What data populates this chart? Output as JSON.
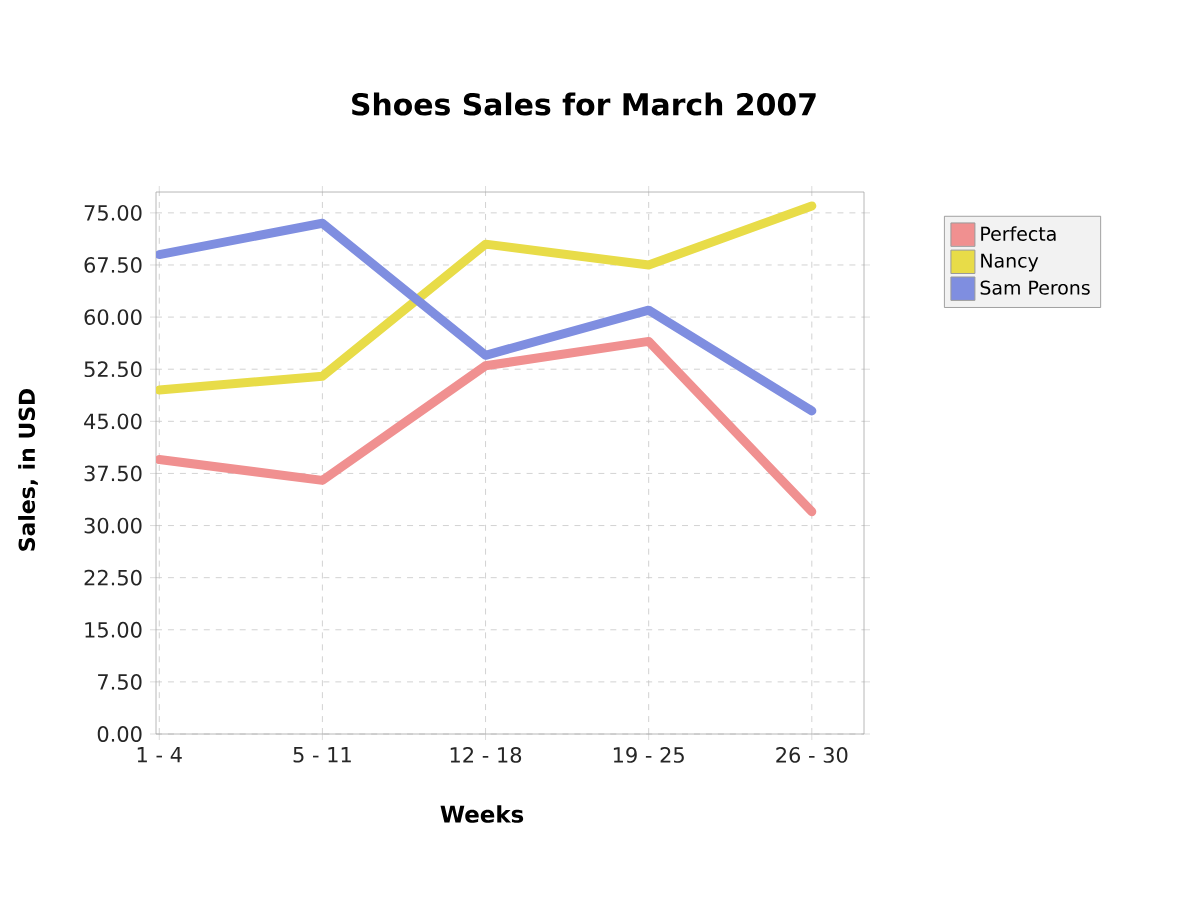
{
  "chart_data": {
    "type": "line",
    "title": "Shoes Sales for March 2007",
    "xlabel": "Weeks",
    "ylabel": "Sales, in USD",
    "categories": [
      "1 - 4",
      "5 - 11",
      "12 - 18",
      "19 - 25",
      "26 - 30"
    ],
    "series": [
      {
        "name": "Perfecta",
        "color": "#f09090",
        "values": [
          39.5,
          36.5,
          53,
          56.5,
          32
        ]
      },
      {
        "name": "Nancy",
        "color": "#e8dc48",
        "values": [
          49.5,
          51.5,
          70.5,
          67.5,
          76
        ]
      },
      {
        "name": "Sam Perons",
        "color": "#7f8ee0",
        "values": [
          69,
          73.5,
          54.5,
          61,
          46.5
        ]
      }
    ],
    "ylim": [
      0,
      78
    ],
    "yticks": [
      {
        "value": 0,
        "label": "0.00"
      },
      {
        "value": 7.5,
        "label": "7.50"
      },
      {
        "value": 15,
        "label": "15.00"
      },
      {
        "value": 22.5,
        "label": "22.50"
      },
      {
        "value": 30,
        "label": "30.00"
      },
      {
        "value": 37.5,
        "label": "37.50"
      },
      {
        "value": 45,
        "label": "45.00"
      },
      {
        "value": 52.5,
        "label": "52.50"
      },
      {
        "value": 60,
        "label": "60.00"
      },
      {
        "value": 67.5,
        "label": "67.50"
      },
      {
        "value": 75,
        "label": "75.00"
      }
    ],
    "grid": true,
    "legend": "top right",
    "marker": "none"
  }
}
